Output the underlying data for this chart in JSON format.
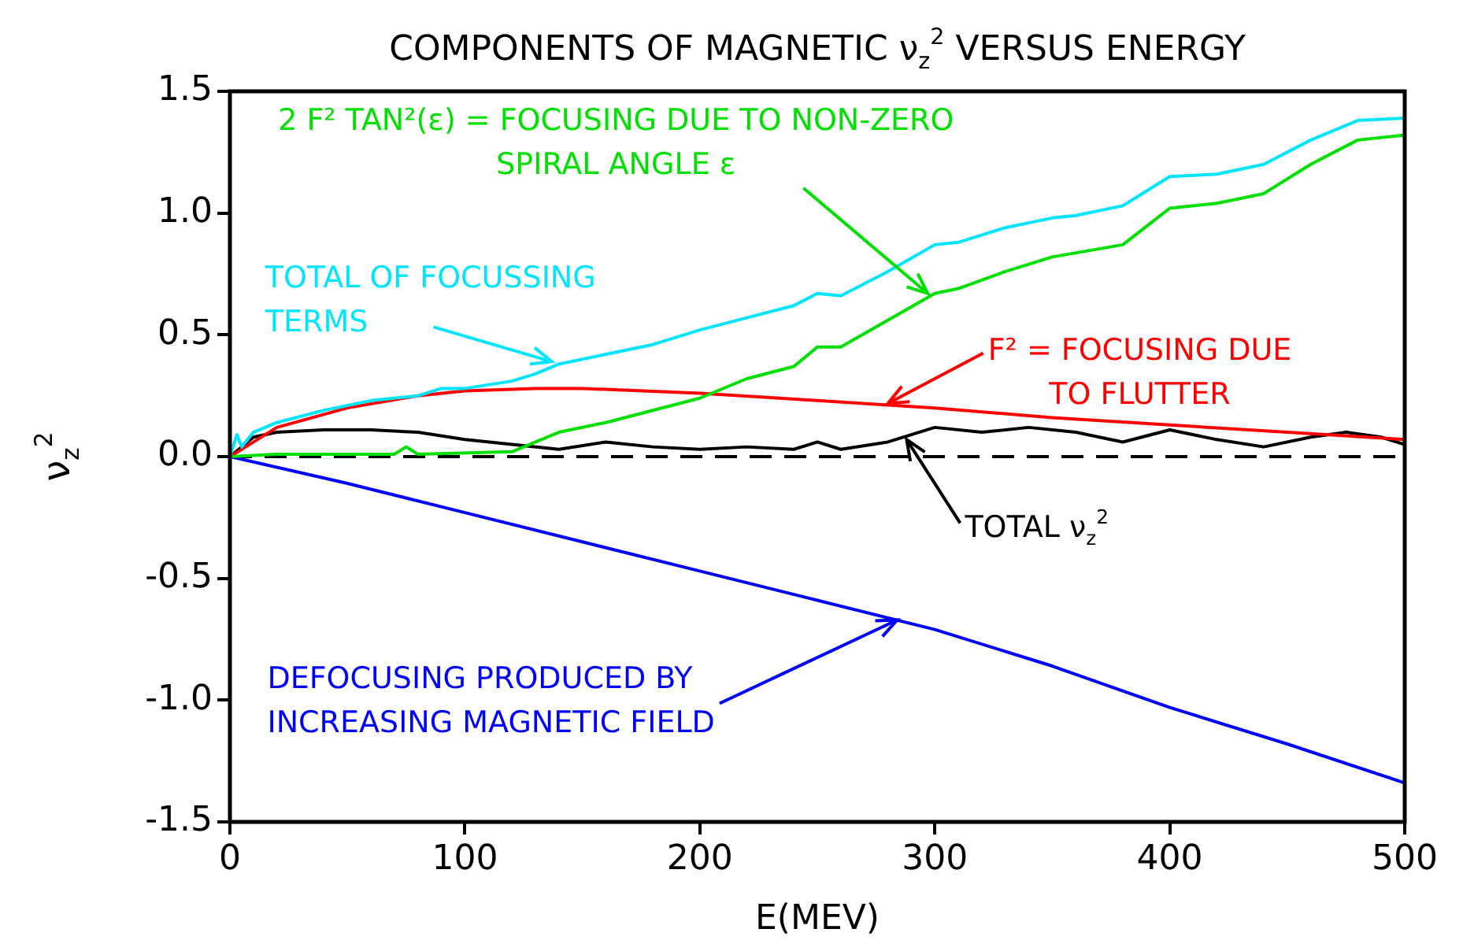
{
  "chart_data": {
    "type": "line",
    "title": "COMPONENTS OF MAGNETIC ν$_{z}$$^{2}$ VERSUS ENERGY",
    "xlabel": "E(MEV)",
    "ylabel": "ν$_{z}$$^{2}$",
    "xlim": [
      0,
      500
    ],
    "xticks": [
      0,
      100,
      200,
      300,
      400,
      500
    ],
    "ylim": [
      -1.5,
      1.5
    ],
    "yticks": [
      -1.5,
      {
        "value": -1,
        "label": "-1.0"
      },
      -0.5,
      {
        "value": 0,
        "label": "0.0"
      },
      0.5,
      {
        "value": 1,
        "label": "1.0"
      },
      1.5
    ],
    "grid": false,
    "legend": false,
    "marker": "none",
    "line_style": "solid",
    "series": [
      {
        "color": "#00e5ff",
        "x": [
          0,
          3,
          5,
          10,
          20,
          40,
          60,
          80,
          90,
          100,
          120,
          130,
          140,
          160,
          180,
          200,
          220,
          240,
          250,
          260,
          280,
          300,
          310,
          330,
          350,
          360,
          380,
          400,
          420,
          440,
          460,
          480,
          500
        ],
        "values": [
          0,
          0.09,
          0.04,
          0.1,
          0.14,
          0.19,
          0.23,
          0.25,
          0.28,
          0.28,
          0.31,
          0.34,
          0.38,
          0.42,
          0.46,
          0.52,
          0.57,
          0.62,
          0.67,
          0.66,
          0.76,
          0.87,
          0.88,
          0.94,
          0.98,
          0.99,
          1.03,
          1.15,
          1.16,
          1.2,
          1.3,
          1.38,
          1.39
        ]
      },
      {
        "color": "#00e000",
        "x": [
          0,
          20,
          70,
          75,
          80,
          120,
          140,
          160,
          180,
          200,
          220,
          240,
          250,
          260,
          280,
          300,
          310,
          330,
          350,
          380,
          400,
          420,
          440,
          460,
          480,
          500
        ],
        "values": [
          0,
          0.01,
          0.01,
          0.04,
          0.01,
          0.02,
          0.1,
          0.14,
          0.19,
          0.24,
          0.32,
          0.37,
          0.45,
          0.45,
          0.56,
          0.67,
          0.69,
          0.76,
          0.82,
          0.87,
          1.02,
          1.04,
          1.08,
          1.2,
          1.3,
          1.32
        ]
      },
      {
        "color": "#ff0000",
        "x": [
          0,
          20,
          50,
          80,
          100,
          130,
          150,
          200,
          250,
          300,
          350,
          400,
          450,
          500
        ],
        "values": [
          0,
          0.12,
          0.2,
          0.25,
          0.27,
          0.28,
          0.28,
          0.26,
          0.23,
          0.2,
          0.16,
          0.13,
          0.1,
          0.07
        ]
      },
      {
        "color": "#000000",
        "x": [
          0,
          10,
          20,
          40,
          60,
          80,
          100,
          120,
          140,
          160,
          180,
          200,
          220,
          240,
          250,
          260,
          280,
          290,
          300,
          320,
          340,
          360,
          380,
          400,
          420,
          440,
          460,
          475,
          490,
          500
        ],
        "values": [
          0,
          0.08,
          0.1,
          0.11,
          0.11,
          0.1,
          0.07,
          0.05,
          0.03,
          0.06,
          0.04,
          0.03,
          0.04,
          0.03,
          0.06,
          0.03,
          0.06,
          0.09,
          0.12,
          0.1,
          0.12,
          0.1,
          0.06,
          0.11,
          0.07,
          0.04,
          0.08,
          0.1,
          0.08,
          0.05
        ]
      },
      {
        "color": "#0000ff",
        "x": [
          0,
          50,
          100,
          150,
          200,
          250,
          300,
          350,
          400,
          450,
          500
        ],
        "values": [
          0,
          -0.11,
          -0.23,
          -0.35,
          -0.47,
          -0.59,
          -0.71,
          -0.86,
          -1.03,
          -1.18,
          -1.34
        ]
      }
    ],
    "ref_lines": [
      {
        "axis": "y",
        "value": 0,
        "color": "#000000",
        "line_style": "dashed"
      }
    ],
    "annotations": [
      {
        "text": "TOTAL OF FOCUSSING\nTERMS",
        "x": 137,
        "y": 0.39
      },
      {
        "text": "2 F² TAN²(ε) = FOCUSING DUE TO NON-ZERO\nSPIRAL ANGLE ε",
        "x": 297,
        "y": 0.67
      },
      {
        "text": "F² = FOCUSING DUE\nTO FLUTTER",
        "x": 280,
        "y": 0.218
      },
      {
        "text": "TOTAL ν$_{z}$$^{2}$",
        "x": 288,
        "y": 0.07
      },
      {
        "text": "DEFOCUSING PRODUCED BY\nINCREASING MAGNETIC FIELD",
        "x": 284,
        "y": -0.6708
      }
    ]
  }
}
